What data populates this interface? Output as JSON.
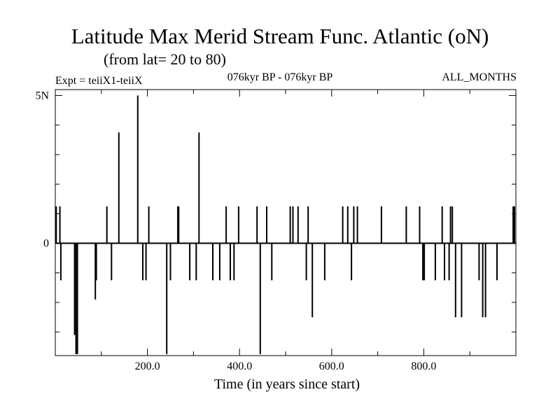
{
  "title": "Latitude Max Merid Stream Func. Atlantic (oN)",
  "subtitle": "(from lat= 20 to 80)",
  "expt": "Expt = teiiX1-teiiX",
  "period": "076kyr BP - 076kyr BP",
  "months": "ALL_MONTHS",
  "chart_data": {
    "type": "bar",
    "xlabel": "Time (in years since start)",
    "ylabel": "",
    "xlim": [
      0,
      1000
    ],
    "ylim": [
      -3.8,
      5.2
    ],
    "xticks": [
      200.0,
      400.0,
      600.0,
      800.0
    ],
    "xtick_labels": [
      "200.0",
      "400.0",
      "600.0",
      "800.0"
    ],
    "yticks": [
      0,
      5
    ],
    "ytick_labels": [
      "0",
      "5N"
    ],
    "grid": false,
    "bar_width": 2,
    "points": [
      {
        "x": 2,
        "y": 1.25
      },
      {
        "x": 10,
        "y": 1.25
      },
      {
        "x": 12,
        "y": -1.25
      },
      {
        "x": 42,
        "y": -3.1
      },
      {
        "x": 45,
        "y": -3.75
      },
      {
        "x": 48,
        "y": -3.75
      },
      {
        "x": 87,
        "y": -1.9
      },
      {
        "x": 89,
        "y": -1.25
      },
      {
        "x": 112,
        "y": 1.25
      },
      {
        "x": 122,
        "y": -1.25
      },
      {
        "x": 138,
        "y": 3.75
      },
      {
        "x": 179,
        "y": 5.0
      },
      {
        "x": 190,
        "y": -1.25
      },
      {
        "x": 197,
        "y": -1.25
      },
      {
        "x": 203,
        "y": 1.25
      },
      {
        "x": 242,
        "y": -3.75
      },
      {
        "x": 250,
        "y": -1.25
      },
      {
        "x": 266,
        "y": 1.25
      },
      {
        "x": 268,
        "y": 1.25
      },
      {
        "x": 292,
        "y": -1.25
      },
      {
        "x": 306,
        "y": -1.25
      },
      {
        "x": 312,
        "y": 3.75
      },
      {
        "x": 342,
        "y": -1.25
      },
      {
        "x": 357,
        "y": -1.25
      },
      {
        "x": 371,
        "y": 1.25
      },
      {
        "x": 380,
        "y": -1.25
      },
      {
        "x": 388,
        "y": -1.25
      },
      {
        "x": 398,
        "y": 1.25
      },
      {
        "x": 438,
        "y": 1.25
      },
      {
        "x": 445,
        "y": -3.75
      },
      {
        "x": 459,
        "y": 1.25
      },
      {
        "x": 470,
        "y": -1.25
      },
      {
        "x": 510,
        "y": 1.25
      },
      {
        "x": 516,
        "y": 1.25
      },
      {
        "x": 527,
        "y": 1.25
      },
      {
        "x": 545,
        "y": -1.25
      },
      {
        "x": 549,
        "y": 1.25
      },
      {
        "x": 558,
        "y": -2.5
      },
      {
        "x": 585,
        "y": -1.25
      },
      {
        "x": 624,
        "y": 1.25
      },
      {
        "x": 635,
        "y": 1.25
      },
      {
        "x": 643,
        "y": -1.25
      },
      {
        "x": 648,
        "y": 1.25
      },
      {
        "x": 656,
        "y": 1.25
      },
      {
        "x": 708,
        "y": 1.25
      },
      {
        "x": 762,
        "y": 1.25
      },
      {
        "x": 791,
        "y": 1.25
      },
      {
        "x": 798,
        "y": -1.25
      },
      {
        "x": 801,
        "y": -1.25
      },
      {
        "x": 825,
        "y": -1.25
      },
      {
        "x": 840,
        "y": 1.25
      },
      {
        "x": 845,
        "y": -1.25
      },
      {
        "x": 855,
        "y": -1.25
      },
      {
        "x": 858,
        "y": 1.25
      },
      {
        "x": 862,
        "y": 1.25
      },
      {
        "x": 869,
        "y": -2.5
      },
      {
        "x": 882,
        "y": -2.5
      },
      {
        "x": 920,
        "y": -1.25
      },
      {
        "x": 928,
        "y": -2.5
      },
      {
        "x": 934,
        "y": -2.5
      },
      {
        "x": 959,
        "y": -1.25
      },
      {
        "x": 994,
        "y": 1.25
      },
      {
        "x": 997,
        "y": 1.25
      }
    ]
  }
}
